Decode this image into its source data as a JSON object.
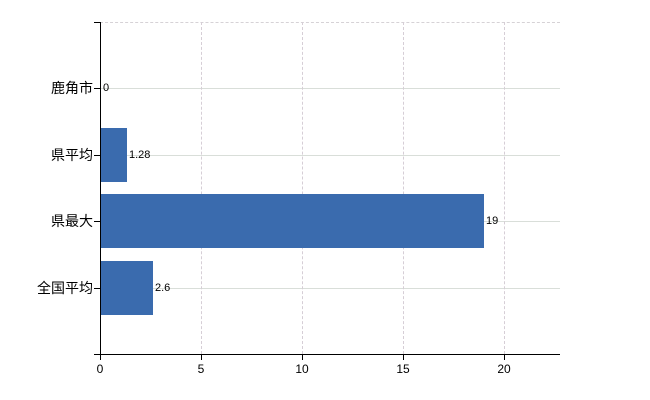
{
  "chart_data": {
    "type": "bar",
    "orientation": "horizontal",
    "title": "",
    "categories": [
      "鹿角市",
      "県平均",
      "県最大",
      "全国平均"
    ],
    "values": [
      0,
      1.28,
      19,
      2.6
    ],
    "value_labels": [
      "0",
      "1.28",
      "19",
      "2.6"
    ],
    "x_axis": {
      "ticks": [
        0,
        5,
        10,
        15,
        20
      ],
      "tick_labels": [
        "0",
        "5",
        "10",
        "15",
        "20"
      ],
      "range": [
        0,
        22.8
      ]
    },
    "y_axis": {
      "label": ""
    },
    "legend": false,
    "grid": {
      "horizontal": "solid",
      "vertical": "dashed"
    },
    "colors": {
      "bar": "#3a6bae",
      "axis": "#000000",
      "text": "#000000",
      "grid_horizontal": "#d9ded9",
      "grid_vertical": "#d6ced6",
      "plot_top_border": "#d6d2d6",
      "background": "#ffffff"
    }
  }
}
